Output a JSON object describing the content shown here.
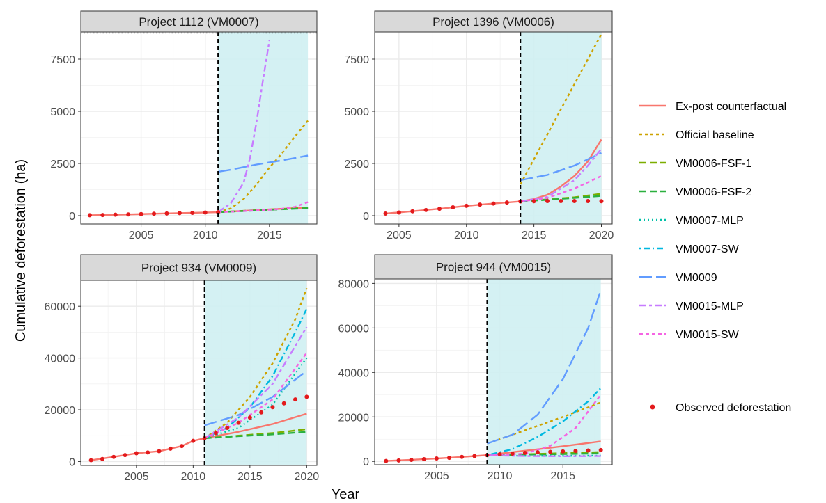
{
  "figure": {
    "xlabel": "Year",
    "ylabel": "Cumulative deforestation (ha)"
  },
  "colors": {
    "Ex-post counterfactual": "#F8766D",
    "Official baseline": "#CDA200",
    "VM0006-FSF-1": "#7CAE00",
    "VM0006-FSF-2": "#2BB03F",
    "VM0007-MLP": "#00C1A8",
    "VM0007-SW": "#00B8E0",
    "VM0009": "#619CFF",
    "VM0015-MLP": "#C77CFF",
    "VM0015-SW": "#F564E3",
    "Observed deforestation": "#E31A1C",
    "project_period_fill": "#CFEFF2",
    "strip_fill": "#D9D9D9",
    "grid": "#EBEBEB"
  },
  "legend": {
    "items": [
      {
        "label": "Ex-post counterfactual",
        "dash": "solid"
      },
      {
        "label": "Official baseline",
        "dash": "dotted-dash"
      },
      {
        "label": "VM0006-FSF-1",
        "dash": "dashed"
      },
      {
        "label": "VM0006-FSF-2",
        "dash": "dashed"
      },
      {
        "label": "VM0007-MLP",
        "dash": "dotted"
      },
      {
        "label": "VM0007-SW",
        "dash": "dotdash"
      },
      {
        "label": "VM0009",
        "dash": "longdash"
      },
      {
        "label": "VM0015-MLP",
        "dash": "twodash"
      },
      {
        "label": "VM0015-SW",
        "dash": "dotted-dash"
      }
    ],
    "observed_label": "Observed deforestation"
  },
  "chart_data": [
    {
      "type": "line",
      "title": "Project 1112 (VM0007)",
      "xlim": [
        2000.3,
        2018.7
      ],
      "ylim": [
        -400,
        8800
      ],
      "xticks": [
        2005,
        2010,
        2015
      ],
      "yticks": [
        0,
        2500,
        5000,
        7500
      ],
      "ytick_labels": [
        "0",
        "2500",
        "5000",
        "7500"
      ],
      "project_start": 2011,
      "shade_range": [
        2011,
        2018
      ],
      "cap_line": 8750,
      "observed": {
        "x": [
          2001,
          2002,
          2003,
          2004,
          2005,
          2006,
          2007,
          2008,
          2009,
          2010,
          2011
        ],
        "y": [
          20,
          30,
          45,
          60,
          75,
          90,
          105,
          120,
          135,
          150,
          165
        ]
      },
      "series": [
        {
          "name": "Ex-post counterfactual",
          "x": [
            2001,
            2003,
            2005,
            2007,
            2009,
            2011,
            2013,
            2015,
            2017,
            2018
          ],
          "y": [
            20,
            45,
            75,
            105,
            135,
            165,
            230,
            300,
            360,
            390
          ]
        },
        {
          "name": "Official baseline",
          "x": [
            2011,
            2012,
            2013,
            2014,
            2015,
            2016,
            2017,
            2018
          ],
          "y": [
            165,
            350,
            800,
            1500,
            2300,
            3000,
            3800,
            4550
          ]
        },
        {
          "name": "VM0006-FSF-1",
          "x": [
            2011,
            2013,
            2015,
            2017,
            2018
          ],
          "y": [
            165,
            230,
            290,
            350,
            380
          ]
        },
        {
          "name": "VM0006-FSF-2",
          "x": [
            2011,
            2013,
            2015,
            2017,
            2018
          ],
          "y": [
            165,
            220,
            280,
            330,
            360
          ]
        },
        {
          "name": "VM0009",
          "x": [
            2011,
            2012,
            2014,
            2016,
            2018
          ],
          "y": [
            2100,
            2200,
            2450,
            2650,
            2880
          ]
        },
        {
          "name": "VM0015-MLP",
          "x": [
            2011,
            2012,
            2013,
            2013.5,
            2014,
            2014.5,
            2015
          ],
          "y": [
            165,
            600,
            1600,
            2800,
            4500,
            6500,
            8400
          ]
        },
        {
          "name": "VM0015-SW",
          "x": [
            2011,
            2013,
            2015,
            2016,
            2017,
            2018
          ],
          "y": [
            165,
            220,
            280,
            330,
            420,
            650
          ]
        }
      ]
    },
    {
      "type": "line",
      "title": "Project 1396 (VM0006)",
      "xlim": [
        2003.2,
        2020.8
      ],
      "ylim": [
        -400,
        8800
      ],
      "xticks": [
        2005,
        2010,
        2015,
        2020
      ],
      "yticks": [
        0,
        2500,
        5000,
        7500
      ],
      "ytick_labels": [
        "0",
        "2500",
        "5000",
        "7500"
      ],
      "project_start": 2014,
      "shade_range": [
        2014,
        2020
      ],
      "observed": {
        "x": [
          2004,
          2005,
          2006,
          2007,
          2008,
          2009,
          2010,
          2011,
          2012,
          2013,
          2014,
          2015,
          2016,
          2017,
          2018,
          2019,
          2020
        ],
        "y": [
          100,
          150,
          210,
          270,
          330,
          400,
          470,
          530,
          580,
          630,
          680,
          690,
          700,
          700,
          700,
          700,
          690
        ]
      },
      "series": [
        {
          "name": "Ex-post counterfactual",
          "x": [
            2004,
            2006,
            2008,
            2010,
            2012,
            2014,
            2015,
            2016,
            2017,
            2018,
            2019,
            2020
          ],
          "y": [
            100,
            210,
            330,
            470,
            580,
            680,
            800,
            1000,
            1400,
            1900,
            2600,
            3650
          ]
        },
        {
          "name": "Official baseline",
          "x": [
            2014,
            2020
          ],
          "y": [
            1500,
            8700
          ]
        },
        {
          "name": "VM0006-FSF-1",
          "x": [
            2014,
            2016,
            2018,
            2020
          ],
          "y": [
            680,
            780,
            880,
            1050
          ]
        },
        {
          "name": "VM0006-FSF-2",
          "x": [
            2014,
            2016,
            2018,
            2020
          ],
          "y": [
            680,
            760,
            850,
            950
          ]
        },
        {
          "name": "VM0009",
          "x": [
            2014,
            2016,
            2018,
            2020
          ],
          "y": [
            1700,
            1950,
            2400,
            3000
          ]
        },
        {
          "name": "VM0015-MLP",
          "x": [
            2014,
            2016,
            2018,
            2019,
            2020
          ],
          "y": [
            680,
            900,
            1700,
            2400,
            3200
          ]
        },
        {
          "name": "VM0015-SW",
          "x": [
            2014,
            2016,
            2018,
            2020
          ],
          "y": [
            680,
            850,
            1300,
            1900
          ]
        }
      ]
    },
    {
      "type": "line",
      "title": "Project 934 (VM0009)",
      "xlim": [
        2000.1,
        2020.9
      ],
      "ylim": [
        -1500,
        70000
      ],
      "xticks": [
        2005,
        2010,
        2015,
        2020
      ],
      "yticks": [
        0,
        20000,
        40000,
        60000
      ],
      "ytick_labels": [
        "0",
        "20000",
        "40000",
        "60000"
      ],
      "project_start": 2011,
      "shade_range": [
        2011,
        2020
      ],
      "observed": {
        "x": [
          2001,
          2002,
          2003,
          2004,
          2005,
          2006,
          2007,
          2008,
          2009,
          2010,
          2011,
          2012,
          2013,
          2014,
          2015,
          2016,
          2017,
          2018,
          2019,
          2020
        ],
        "y": [
          500,
          1000,
          1800,
          2500,
          3200,
          3500,
          4000,
          5000,
          6000,
          8000,
          9000,
          11000,
          13000,
          15000,
          17000,
          19000,
          21000,
          22500,
          24000,
          25000
        ]
      },
      "series": [
        {
          "name": "Ex-post counterfactual",
          "x": [
            2001,
            2003,
            2005,
            2007,
            2009,
            2010,
            2011,
            2014,
            2017,
            2020
          ],
          "y": [
            500,
            1800,
            3200,
            4000,
            6000,
            8000,
            9000,
            11500,
            14500,
            18500
          ]
        },
        {
          "name": "Official baseline",
          "x": [
            2011,
            2013,
            2015,
            2017,
            2019,
            2020
          ],
          "y": [
            9000,
            15000,
            25000,
            38000,
            55000,
            67000
          ]
        },
        {
          "name": "VM0006-FSF-1",
          "x": [
            2011,
            2014,
            2017,
            2020
          ],
          "y": [
            9000,
            10000,
            11000,
            12500
          ]
        },
        {
          "name": "VM0006-FSF-2",
          "x": [
            2011,
            2014,
            2017,
            2020
          ],
          "y": [
            9000,
            9800,
            10500,
            11500
          ]
        },
        {
          "name": "VM0007-MLP",
          "x": [
            2011,
            2014,
            2017,
            2020
          ],
          "y": [
            9000,
            13000,
            22000,
            40000
          ]
        },
        {
          "name": "VM0007-SW",
          "x": [
            2011,
            2013,
            2015,
            2017,
            2019,
            2020
          ],
          "y": [
            9000,
            13000,
            21000,
            33000,
            50000,
            59000
          ]
        },
        {
          "name": "VM0009",
          "x": [
            2011,
            2014,
            2017,
            2020
          ],
          "y": [
            14000,
            18000,
            25000,
            35000
          ]
        },
        {
          "name": "VM0015-MLP",
          "x": [
            2011,
            2014,
            2017,
            2020
          ],
          "y": [
            9000,
            17000,
            30000,
            52000
          ]
        },
        {
          "name": "VM0015-SW",
          "x": [
            2011,
            2014,
            2017,
            2020
          ],
          "y": [
            9000,
            15000,
            24000,
            42000
          ]
        }
      ]
    },
    {
      "type": "line",
      "title": "Project 944 (VM0015)",
      "xlim": [
        2000.1,
        2018.9
      ],
      "ylim": [
        -1500,
        82000
      ],
      "xticks": [
        2005,
        2010,
        2015
      ],
      "yticks": [
        0,
        20000,
        40000,
        60000,
        80000
      ],
      "ytick_labels": [
        "0",
        "20000",
        "40000",
        "60000",
        "80000"
      ],
      "project_start": 2009,
      "shade_range": [
        2009,
        2018
      ],
      "observed": {
        "x": [
          2001,
          2002,
          2003,
          2004,
          2005,
          2006,
          2007,
          2008,
          2009,
          2010,
          2011,
          2012,
          2013,
          2014,
          2015,
          2016,
          2017,
          2018
        ],
        "y": [
          200,
          400,
          700,
          1000,
          1300,
          1600,
          2000,
          2400,
          2800,
          3200,
          3500,
          3800,
          4100,
          4300,
          4500,
          4700,
          4900,
          5100
        ]
      },
      "series": [
        {
          "name": "Ex-post counterfactual",
          "x": [
            2001,
            2003,
            2005,
            2007,
            2009,
            2012,
            2015,
            2018
          ],
          "y": [
            200,
            700,
            1300,
            2000,
            2800,
            4800,
            6800,
            9000
          ]
        },
        {
          "name": "Official baseline",
          "x": [
            2009,
            2012,
            2015,
            2018
          ],
          "y": [
            8000,
            14000,
            20000,
            26500
          ]
        },
        {
          "name": "VM0006-FSF-1",
          "x": [
            2009,
            2012,
            2015,
            2018
          ],
          "y": [
            2800,
            3200,
            3700,
            4200
          ]
        },
        {
          "name": "VM0006-FSF-2",
          "x": [
            2009,
            2012,
            2015,
            2018
          ],
          "y": [
            2800,
            3000,
            3300,
            3600
          ]
        },
        {
          "name": "VM0007-MLP",
          "x": [
            2009,
            2012,
            2015,
            2018
          ],
          "y": [
            2800,
            2500,
            2500,
            2600
          ]
        },
        {
          "name": "VM0007-SW",
          "x": [
            2009,
            2011,
            2013,
            2015,
            2017,
            2018
          ],
          "y": [
            2800,
            5500,
            11000,
            18000,
            27000,
            33000
          ]
        },
        {
          "name": "VM0009",
          "x": [
            2009,
            2011,
            2013,
            2015,
            2017,
            2018
          ],
          "y": [
            8000,
            12000,
            21000,
            37000,
            60000,
            77000
          ]
        },
        {
          "name": "VM0015-MLP",
          "x": [
            2009,
            2012,
            2015,
            2018
          ],
          "y": [
            2800,
            2400,
            2300,
            2400
          ]
        },
        {
          "name": "VM0015-SW",
          "x": [
            2009,
            2012,
            2014,
            2016,
            2018
          ],
          "y": [
            2800,
            3500,
            7000,
            15000,
            30000
          ]
        }
      ]
    }
  ]
}
